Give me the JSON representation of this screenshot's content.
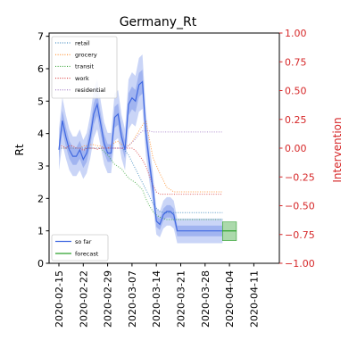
{
  "chart_data": {
    "type": "line",
    "title": "Germany_Rt",
    "ylabel": "Rt",
    "y2label": "Intervention",
    "ylim": [
      0,
      7.1
    ],
    "y2lim": [
      -1.0,
      1.0
    ],
    "yticks": [
      "0",
      "1",
      "2",
      "3",
      "4",
      "5",
      "6",
      "7"
    ],
    "y2ticks": [
      "1.00",
      "0.75",
      "0.50",
      "0.25",
      "0.00",
      "-0.25",
      "-0.50",
      "-0.75",
      "-1.00"
    ],
    "xticks": [
      "2020-02-15",
      "2020-02-22",
      "2020-02-29",
      "2020-03-07",
      "2020-03-14",
      "2020-03-21",
      "2020-03-28",
      "2020-04-04",
      "2020-04-11"
    ],
    "x_start": "2020-02-15",
    "rt_so_far": [
      3.5,
      4.4,
      3.9,
      3.5,
      3.3,
      3.3,
      3.5,
      3.2,
      3.4,
      3.9,
      4.6,
      4.9,
      4.3,
      3.7,
      3.4,
      3.4,
      4.5,
      4.6,
      3.9,
      3.5,
      4.9,
      5.1,
      5.0,
      5.5,
      5.6,
      4.0,
      3.1,
      2.3,
      1.3,
      1.2,
      1.5,
      1.6,
      1.6,
      1.5,
      1.0,
      1.0,
      1.0,
      1.0,
      1.0,
      1.0,
      1.0,
      1.0,
      1.0,
      1.0,
      1.0,
      1.0,
      1.0,
      1.0
    ],
    "rt_forecast": [
      1.0,
      1.0,
      1.0
    ],
    "interventions": [
      {
        "name": "retail",
        "color": "#1f77b4",
        "values": [
          0.0,
          0.0,
          0.0,
          0.0,
          0.0,
          0.0,
          0.0,
          0.0,
          0.0,
          0.0,
          0.0,
          0.0,
          0.0,
          0.0,
          0.0,
          0.0,
          0.0,
          0.0,
          0.0,
          -0.02,
          -0.06,
          -0.12,
          -0.18,
          -0.24,
          -0.3,
          -0.36,
          -0.42,
          -0.48,
          -0.52,
          -0.55,
          -0.56,
          -0.56,
          -0.56,
          -0.56,
          -0.56,
          -0.56,
          -0.56,
          -0.56,
          -0.56,
          -0.56,
          -0.56,
          -0.56,
          -0.56,
          -0.56,
          -0.56,
          -0.56,
          -0.56,
          -0.56
        ]
      },
      {
        "name": "grocery",
        "color": "#ff7f0e",
        "values": [
          0.0,
          0.0,
          0.0,
          0.0,
          0.0,
          0.0,
          0.0,
          0.02,
          0.02,
          0.03,
          0.03,
          0.02,
          0.02,
          0.0,
          0.0,
          0.02,
          0.05,
          0.06,
          0.03,
          0.03,
          0.02,
          0.05,
          0.1,
          0.15,
          0.2,
          0.24,
          0.08,
          -0.08,
          -0.15,
          -0.22,
          -0.28,
          -0.34,
          -0.36,
          -0.38,
          -0.38,
          -0.38,
          -0.38,
          -0.38,
          -0.38,
          -0.38,
          -0.38,
          -0.38,
          -0.38,
          -0.38,
          -0.38,
          -0.38,
          -0.38,
          -0.38
        ]
      },
      {
        "name": "transit",
        "color": "#2ca02c",
        "values": [
          0.0,
          0.0,
          0.0,
          0.0,
          0.0,
          0.0,
          0.0,
          0.0,
          0.0,
          0.0,
          0.0,
          0.0,
          0.0,
          -0.03,
          -0.06,
          -0.1,
          -0.14,
          -0.16,
          -0.18,
          -0.22,
          -0.26,
          -0.28,
          -0.3,
          -0.33,
          -0.36,
          -0.44,
          -0.5,
          -0.55,
          -0.58,
          -0.6,
          -0.61,
          -0.62,
          -0.62,
          -0.62,
          -0.62,
          -0.62,
          -0.62,
          -0.62,
          -0.62,
          -0.62,
          -0.62,
          -0.62,
          -0.62,
          -0.62,
          -0.62,
          -0.62,
          -0.62,
          -0.62
        ]
      },
      {
        "name": "work",
        "color": "#d62728",
        "values": [
          0.02,
          0.02,
          0.0,
          0.02,
          0.02,
          0.0,
          0.0,
          -0.02,
          0.0,
          0.0,
          0.0,
          -0.01,
          0.0,
          0.0,
          0.0,
          0.0,
          0.0,
          0.0,
          0.0,
          0.0,
          0.0,
          0.0,
          -0.02,
          -0.06,
          -0.1,
          -0.16,
          -0.24,
          -0.32,
          -0.38,
          -0.4,
          -0.4,
          -0.4,
          -0.4,
          -0.4,
          -0.4,
          -0.4,
          -0.4,
          -0.4,
          -0.4,
          -0.4,
          -0.4,
          -0.4,
          -0.4,
          -0.4,
          -0.4,
          -0.4,
          -0.4,
          -0.4
        ]
      },
      {
        "name": "residential",
        "color": "#9467bd",
        "values": [
          0.0,
          0.0,
          0.0,
          0.0,
          0.0,
          0.0,
          0.0,
          0.0,
          0.0,
          0.0,
          0.0,
          0.0,
          0.0,
          0.0,
          0.0,
          0.0,
          0.0,
          0.0,
          0.0,
          0.0,
          0.02,
          0.05,
          0.08,
          0.12,
          0.15,
          0.15,
          0.15,
          0.14,
          0.14,
          0.14,
          0.14,
          0.14,
          0.14,
          0.14,
          0.14,
          0.14,
          0.14,
          0.14,
          0.14,
          0.14,
          0.14,
          0.14,
          0.14,
          0.14,
          0.14,
          0.14,
          0.14,
          0.14
        ]
      }
    ],
    "legend_top": [
      "retail",
      "grocery",
      "transit",
      "work",
      "residential"
    ],
    "legend_bottom": [
      {
        "name": "so far",
        "color": "#4169e1"
      },
      {
        "name": "forecast",
        "color": "#2ca02c"
      }
    ]
  }
}
